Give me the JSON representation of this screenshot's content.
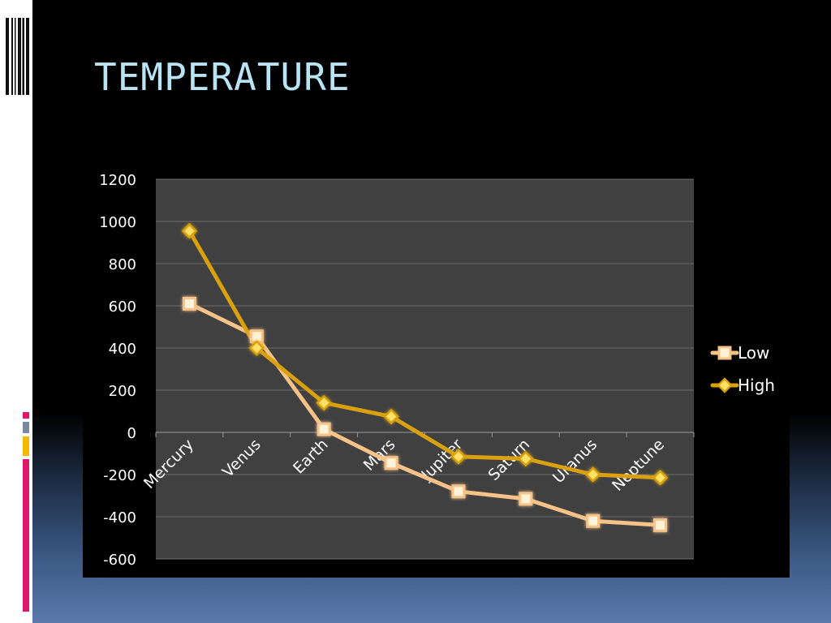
{
  "slide": {
    "title": "TEMPERATURE"
  },
  "colors": {
    "title": "#b8e4f6",
    "plot_bg": "#404040",
    "low_line": "#f7c287",
    "high_line": "#d9a00f",
    "accent_pink": "#e0166e",
    "accent_gold": "#f4b800"
  },
  "chart_data": {
    "type": "line",
    "title": "",
    "xlabel": "",
    "ylabel": "",
    "categories": [
      "Mercury",
      "Venus",
      "Earth",
      "Mars",
      "Jupiter",
      "Saturn",
      "Uranus",
      "Neptune"
    ],
    "ylim": [
      -600,
      1200
    ],
    "yticks": [
      1200,
      1000,
      800,
      600,
      400,
      200,
      0,
      -200,
      -400,
      -600
    ],
    "grid": true,
    "legend_position": "right",
    "series": [
      {
        "name": "Low",
        "values": [
          610,
          455,
          15,
          -145,
          -280,
          -315,
          -420,
          -440
        ],
        "color": "#f7c287",
        "marker": "square"
      },
      {
        "name": "High",
        "values": [
          955,
          400,
          140,
          75,
          -115,
          -125,
          -200,
          -215
        ],
        "color": "#d9a00f",
        "marker": "diamond"
      }
    ]
  }
}
